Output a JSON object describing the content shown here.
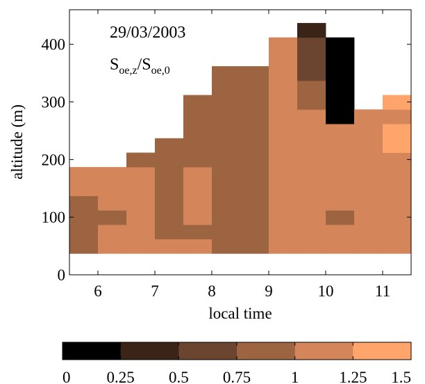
{
  "chart_data": {
    "type": "heatmap",
    "annotation": {
      "date": "29/03/2003",
      "ratio_S1": "S",
      "ratio_sub1": "oe,z",
      "ratio_slash": "/",
      "ratio_S2": "S",
      "ratio_sub2": "oe,0"
    },
    "xlabel": "local time",
    "ylabel": "altitude (m)",
    "xlim": [
      5.5,
      11.5
    ],
    "ylim": [
      0,
      460
    ],
    "xticks": [
      6,
      7,
      8,
      9,
      10,
      11
    ],
    "xtick_labels": [
      "6",
      "7",
      "8",
      "9",
      "10",
      "11"
    ],
    "yticks": [
      0,
      100,
      200,
      300,
      400
    ],
    "ytick_labels": [
      "0",
      "100",
      "200",
      "300",
      "400"
    ],
    "time_bin_width": 0.5,
    "altitude_bin_height": 25,
    "colorbar": {
      "ticks": [
        0,
        0.25,
        0.5,
        0.75,
        1,
        1.25,
        1.5
      ],
      "tick_labels": [
        "0",
        "0.25",
        "0.5",
        "0.75",
        "1",
        "1.25",
        "1.5"
      ],
      "colors": [
        "#000000",
        "#3a2418",
        "#6b4530",
        "#9c6441",
        "#d4865a",
        "#ffa46b"
      ]
    },
    "columns": [
      {
        "t0": 5.5,
        "cells": [
          {
            "z0": 37,
            "z1": 137,
            "v": 0.9
          },
          {
            "z0": 137,
            "z1": 187,
            "v": 1.1
          }
        ]
      },
      {
        "t0": 6.0,
        "cells": [
          {
            "z0": 37,
            "z1": 87,
            "v": 1.1
          },
          {
            "z0": 87,
            "z1": 112,
            "v": 0.9
          },
          {
            "z0": 112,
            "z1": 187,
            "v": 1.1
          }
        ]
      },
      {
        "t0": 6.5,
        "cells": [
          {
            "z0": 37,
            "z1": 187,
            "v": 1.1
          },
          {
            "z0": 187,
            "z1": 212,
            "v": 0.9
          }
        ]
      },
      {
        "t0": 7.0,
        "cells": [
          {
            "z0": 37,
            "z1": 62,
            "v": 1.1
          },
          {
            "z0": 62,
            "z1": 237,
            "v": 0.9
          }
        ]
      },
      {
        "t0": 7.5,
        "cells": [
          {
            "z0": 37,
            "z1": 62,
            "v": 1.1
          },
          {
            "z0": 62,
            "z1": 87,
            "v": 0.9
          },
          {
            "z0": 87,
            "z1": 187,
            "v": 1.1
          },
          {
            "z0": 187,
            "z1": 312,
            "v": 0.9
          }
        ]
      },
      {
        "t0": 8.0,
        "cells": [
          {
            "z0": 37,
            "z1": 362,
            "v": 0.9
          }
        ]
      },
      {
        "t0": 8.5,
        "cells": [
          {
            "z0": 37,
            "z1": 362,
            "v": 0.9
          }
        ]
      },
      {
        "t0": 9.0,
        "cells": [
          {
            "z0": 37,
            "z1": 412,
            "v": 1.1
          }
        ]
      },
      {
        "t0": 9.5,
        "cells": [
          {
            "z0": 37,
            "z1": 287,
            "v": 1.1
          },
          {
            "z0": 287,
            "z1": 337,
            "v": 0.9
          },
          {
            "z0": 337,
            "z1": 412,
            "v": 0.6
          },
          {
            "z0": 412,
            "z1": 437,
            "v": 0.4
          }
        ]
      },
      {
        "t0": 10.0,
        "cells": [
          {
            "z0": 37,
            "z1": 87,
            "v": 1.1
          },
          {
            "z0": 87,
            "z1": 112,
            "v": 0.9
          },
          {
            "z0": 112,
            "z1": 262,
            "v": 1.1
          },
          {
            "z0": 262,
            "z1": 412,
            "v": 0.1
          }
        ]
      },
      {
        "t0": 10.5,
        "cells": [
          {
            "z0": 37,
            "z1": 287,
            "v": 1.1
          }
        ]
      },
      {
        "t0": 11.0,
        "cells": [
          {
            "z0": 37,
            "z1": 212,
            "v": 1.1
          },
          {
            "z0": 212,
            "z1": 262,
            "v": 1.4
          },
          {
            "z0": 262,
            "z1": 287,
            "v": 1.1
          },
          {
            "z0": 287,
            "z1": 312,
            "v": 1.4
          }
        ]
      }
    ]
  }
}
